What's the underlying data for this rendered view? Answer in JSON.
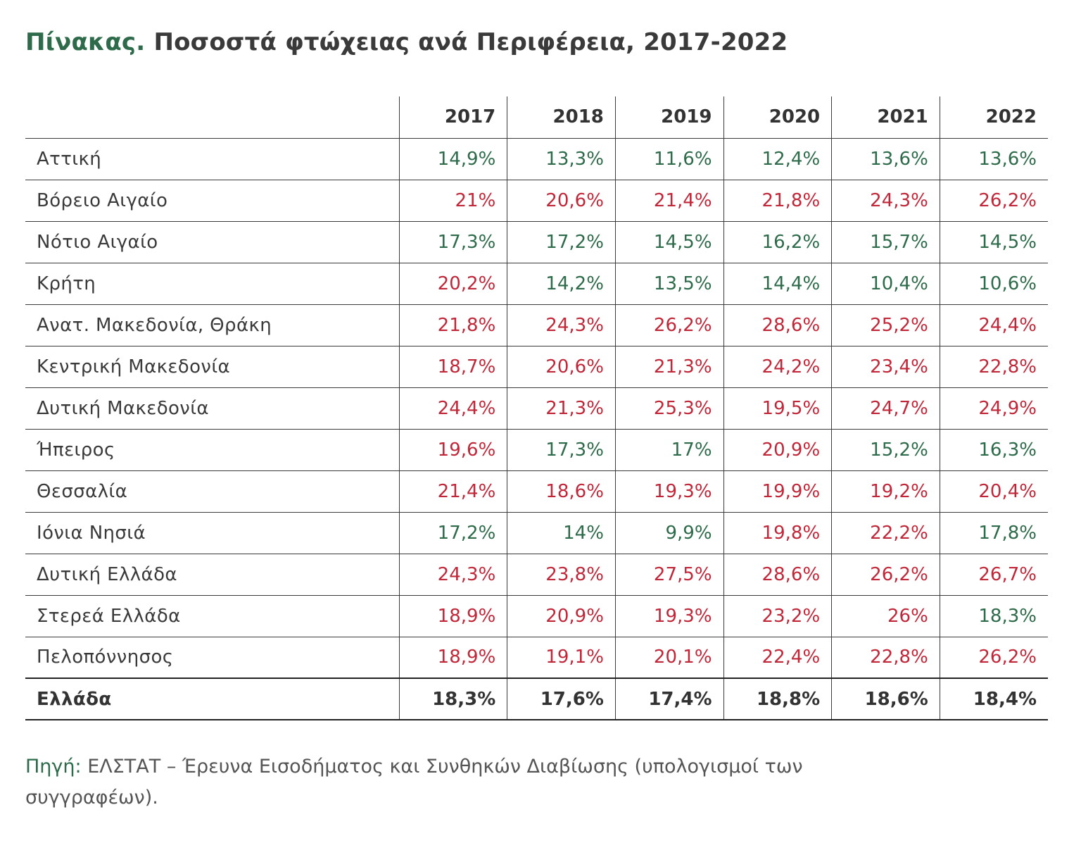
{
  "title": {
    "prefix": "Πίνακας.",
    "main": "Ποσοστά φτώχειας ανά Περιφέρεια, 2017-2022"
  },
  "colors": {
    "below_average": "#2e6b4a",
    "above_average": "#c0283a"
  },
  "table": {
    "region_header": "",
    "years": [
      "2017",
      "2018",
      "2019",
      "2020",
      "2021",
      "2022"
    ],
    "rows": [
      {
        "region": "Αττική",
        "values": [
          "14,9%",
          "13,3%",
          "11,6%",
          "12,4%",
          "13,6%",
          "13,6%"
        ],
        "status": [
          "good",
          "good",
          "good",
          "good",
          "good",
          "good"
        ]
      },
      {
        "region": "Βόρειο Αιγαίο",
        "values": [
          "21%",
          "20,6%",
          "21,4%",
          "21,8%",
          "24,3%",
          "26,2%"
        ],
        "status": [
          "bad",
          "bad",
          "bad",
          "bad",
          "bad",
          "bad"
        ]
      },
      {
        "region": "Νότιο Αιγαίο",
        "values": [
          "17,3%",
          "17,2%",
          "14,5%",
          "16,2%",
          "15,7%",
          "14,5%"
        ],
        "status": [
          "good",
          "good",
          "good",
          "good",
          "good",
          "good"
        ]
      },
      {
        "region": "Κρήτη",
        "values": [
          "20,2%",
          "14,2%",
          "13,5%",
          "14,4%",
          "10,4%",
          "10,6%"
        ],
        "status": [
          "bad",
          "good",
          "good",
          "good",
          "good",
          "good"
        ]
      },
      {
        "region": "Ανατ. Μακεδονία, Θράκη",
        "values": [
          "21,8%",
          "24,3%",
          "26,2%",
          "28,6%",
          "25,2%",
          "24,4%"
        ],
        "status": [
          "bad",
          "bad",
          "bad",
          "bad",
          "bad",
          "bad"
        ]
      },
      {
        "region": "Κεντρική Μακεδονία",
        "values": [
          "18,7%",
          "20,6%",
          "21,3%",
          "24,2%",
          "23,4%",
          "22,8%"
        ],
        "status": [
          "bad",
          "bad",
          "bad",
          "bad",
          "bad",
          "bad"
        ]
      },
      {
        "region": "Δυτική Μακεδονία",
        "values": [
          "24,4%",
          "21,3%",
          "25,3%",
          "19,5%",
          "24,7%",
          "24,9%"
        ],
        "status": [
          "bad",
          "bad",
          "bad",
          "bad",
          "bad",
          "bad"
        ]
      },
      {
        "region": "Ήπειρος",
        "values": [
          "19,6%",
          "17,3%",
          "17%",
          "20,9%",
          "15,2%",
          "16,3%"
        ],
        "status": [
          "bad",
          "good",
          "good",
          "bad",
          "good",
          "good"
        ]
      },
      {
        "region": "Θεσσαλία",
        "values": [
          "21,4%",
          "18,6%",
          "19,3%",
          "19,9%",
          "19,2%",
          "20,4%"
        ],
        "status": [
          "bad",
          "bad",
          "bad",
          "bad",
          "bad",
          "bad"
        ]
      },
      {
        "region": "Ιόνια Νησιά",
        "values": [
          "17,2%",
          "14%",
          "9,9%",
          "19,8%",
          "22,2%",
          "17,8%"
        ],
        "status": [
          "good",
          "good",
          "good",
          "bad",
          "bad",
          "good"
        ]
      },
      {
        "region": "Δυτική Ελλάδα",
        "values": [
          "24,3%",
          "23,8%",
          "27,5%",
          "28,6%",
          "26,2%",
          "26,7%"
        ],
        "status": [
          "bad",
          "bad",
          "bad",
          "bad",
          "bad",
          "bad"
        ]
      },
      {
        "region": "Στερεά Ελλάδα",
        "values": [
          "18,9%",
          "20,9%",
          "19,3%",
          "23,2%",
          "26%",
          "18,3%"
        ],
        "status": [
          "bad",
          "bad",
          "bad",
          "bad",
          "bad",
          "good"
        ]
      },
      {
        "region": "Πελοπόννησος",
        "values": [
          "18,9%",
          "19,1%",
          "20,1%",
          "22,4%",
          "22,8%",
          "26,2%"
        ],
        "status": [
          "bad",
          "bad",
          "bad",
          "bad",
          "bad",
          "bad"
        ]
      }
    ],
    "total": {
      "region": "Ελλάδα",
      "values": [
        "18,3%",
        "17,6%",
        "17,4%",
        "18,8%",
        "18,6%",
        "18,4%"
      ]
    }
  },
  "source": {
    "label": "Πηγή:",
    "text": " ΕΛΣΤΑΤ – Έρευνα Εισοδήματος και Συνθηκών Διαβίωσης (υπολογισμοί των συγγραφέων)."
  }
}
